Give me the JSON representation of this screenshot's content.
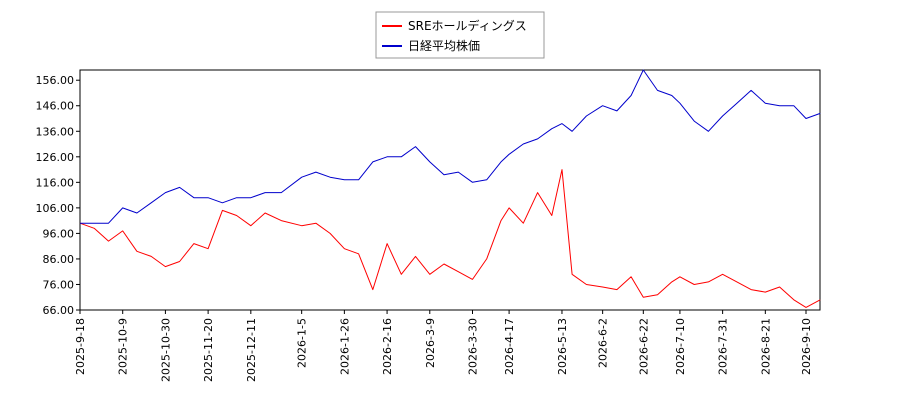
{
  "chart_data": {
    "type": "line",
    "legend": {
      "placement": "top-center"
    },
    "grid": true,
    "ylim": [
      66.0,
      160.0
    ],
    "y_ticks": [
      "66.00",
      "76.00",
      "86.00",
      "96.00",
      "106.00",
      "116.00",
      "126.00",
      "136.00",
      "146.00",
      "156.00"
    ],
    "x_tick_labels": [
      "2025-9-18",
      "2025-10-9",
      "2025-10-30",
      "2025-11-20",
      "2025-12-11",
      "2026-1-5",
      "2026-1-26",
      "2026-2-16",
      "2026-3-9",
      "2026-3-30",
      "2026-4-17",
      "2026-5-13",
      "2026-6-2",
      "2026-6-22",
      "2026-7-10",
      "2026-7-31",
      "2026-8-21",
      "2026-9-10"
    ],
    "series": [
      {
        "name": "SREホールディングス",
        "color": "#ff0000",
        "x": [
          "2025-9-18",
          "2025-9-25",
          "2025-10-2",
          "2025-10-9",
          "2025-10-16",
          "2025-10-23",
          "2025-10-30",
          "2025-11-6",
          "2025-11-13",
          "2025-11-20",
          "2025-11-27",
          "2025-12-4",
          "2025-12-11",
          "2025-12-18",
          "2025-12-26",
          "2026-1-5",
          "2026-1-12",
          "2026-1-19",
          "2026-1-26",
          "2026-2-2",
          "2026-2-9",
          "2026-2-16",
          "2026-2-23",
          "2026-3-2",
          "2026-3-9",
          "2026-3-16",
          "2026-3-23",
          "2026-3-30",
          "2026-4-6",
          "2026-4-13",
          "2026-4-17",
          "2026-4-24",
          "2026-5-1",
          "2026-5-8",
          "2026-5-13",
          "2026-5-18",
          "2026-5-25",
          "2026-6-2",
          "2026-6-9",
          "2026-6-16",
          "2026-6-22",
          "2026-6-29",
          "2026-7-6",
          "2026-7-10",
          "2026-7-17",
          "2026-7-24",
          "2026-7-31",
          "2026-8-7",
          "2026-8-14",
          "2026-8-21",
          "2026-8-28",
          "2026-9-4",
          "2026-9-10",
          "2026-9-17"
        ],
        "values": [
          100,
          98,
          93,
          97,
          89,
          87,
          83,
          85,
          92,
          90,
          105,
          103,
          99,
          104,
          101,
          99,
          100,
          96,
          90,
          88,
          74,
          92,
          80,
          87,
          80,
          84,
          81,
          78,
          86,
          101,
          106,
          100,
          112,
          103,
          121,
          80,
          76,
          75,
          74,
          79,
          71,
          72,
          77,
          79,
          76,
          77,
          80,
          77,
          74,
          73,
          75,
          70,
          67,
          70
        ]
      },
      {
        "name": "日経平均株価",
        "color": "#0000cc",
        "x": [
          "2025-9-18",
          "2025-9-25",
          "2025-10-2",
          "2025-10-9",
          "2025-10-16",
          "2025-10-23",
          "2025-10-30",
          "2025-11-6",
          "2025-11-13",
          "2025-11-20",
          "2025-11-27",
          "2025-12-4",
          "2025-12-11",
          "2025-12-18",
          "2025-12-26",
          "2026-1-5",
          "2026-1-12",
          "2026-1-19",
          "2026-1-26",
          "2026-2-2",
          "2026-2-9",
          "2026-2-16",
          "2026-2-23",
          "2026-3-2",
          "2026-3-9",
          "2026-3-16",
          "2026-3-23",
          "2026-3-30",
          "2026-4-6",
          "2026-4-13",
          "2026-4-17",
          "2026-4-24",
          "2026-5-1",
          "2026-5-8",
          "2026-5-13",
          "2026-5-18",
          "2026-5-25",
          "2026-6-2",
          "2026-6-9",
          "2026-6-16",
          "2026-6-22",
          "2026-6-29",
          "2026-7-6",
          "2026-7-10",
          "2026-7-17",
          "2026-7-24",
          "2026-7-31",
          "2026-8-7",
          "2026-8-14",
          "2026-8-21",
          "2026-8-28",
          "2026-9-4",
          "2026-9-10",
          "2026-9-17"
        ],
        "values": [
          100,
          100,
          100,
          106,
          104,
          108,
          112,
          114,
          110,
          110,
          108,
          110,
          110,
          112,
          112,
          118,
          120,
          118,
          117,
          117,
          124,
          126,
          126,
          130,
          124,
          119,
          120,
          116,
          117,
          124,
          127,
          131,
          133,
          137,
          139,
          136,
          142,
          146,
          144,
          150,
          160,
          152,
          150,
          147,
          140,
          136,
          142,
          147,
          152,
          147,
          146,
          146,
          141,
          143
        ]
      }
    ]
  }
}
